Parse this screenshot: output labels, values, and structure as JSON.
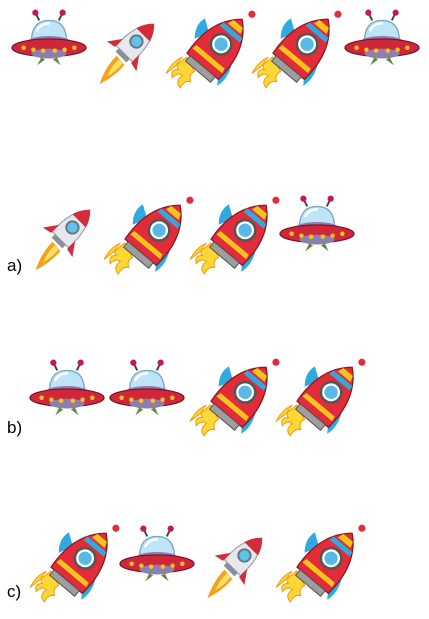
{
  "rows": [
    {
      "id": "top",
      "label": "",
      "items": [
        "ufo",
        "small-rocket",
        "big-rocket",
        "big-rocket",
        "ufo"
      ]
    },
    {
      "id": "a",
      "label": "a)",
      "items": [
        "small-rocket",
        "big-rocket",
        "big-rocket",
        "ufo"
      ]
    },
    {
      "id": "b",
      "label": "b)",
      "items": [
        "ufo",
        "ufo",
        "big-rocket",
        "big-rocket"
      ]
    },
    {
      "id": "c",
      "label": "c)",
      "items": [
        "big-rocket",
        "ufo",
        "small-rocket",
        "big-rocket"
      ]
    }
  ],
  "colors": {
    "ufo_body": "#d0263a",
    "ufo_dome": "#bde4f7",
    "rocket_red": "#e32c3a",
    "rocket_stripe": "#f6c51d",
    "rocket_blue": "#2eaae0",
    "flame": "#fdd835"
  }
}
